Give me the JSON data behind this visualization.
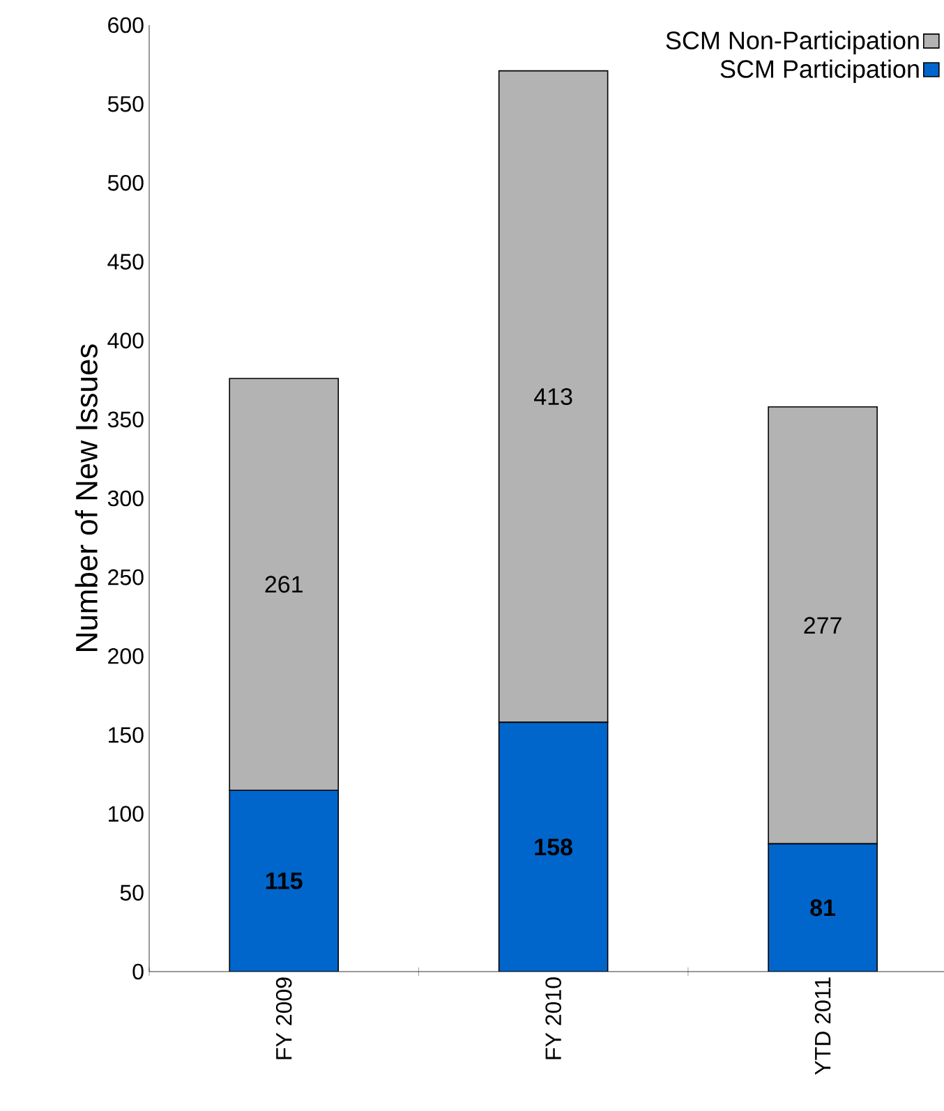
{
  "chart_data": {
    "type": "bar",
    "stacked": true,
    "ylabel": "Number of New Issues",
    "categories": [
      "FY 2009",
      "FY 2010",
      "YTD 2011"
    ],
    "series": [
      {
        "name": "SCM Participation",
        "color": "#0066cc",
        "values": [
          115,
          158,
          81
        ]
      },
      {
        "name": "SCM Non-Participation",
        "color": "#b3b3b3",
        "values": [
          261,
          413,
          277
        ]
      }
    ],
    "ylim": [
      0,
      600
    ],
    "yticks": [
      0,
      50,
      100,
      150,
      200,
      250,
      300,
      350,
      400,
      450,
      500,
      550,
      600
    ],
    "data_labels": true,
    "legend": "top right",
    "grid": false
  }
}
